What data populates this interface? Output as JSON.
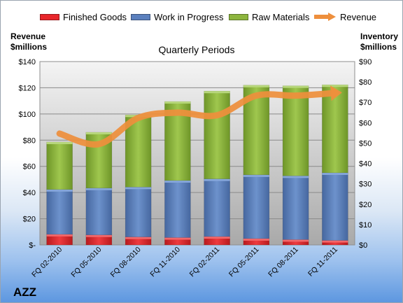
{
  "company": "AZZ",
  "chart_data": {
    "type": "bar",
    "stacked": true,
    "title": "Quarterly Periods",
    "left_axis_label": [
      "Revenue",
      "$millions"
    ],
    "right_axis_label": [
      "Inventory",
      "$millions"
    ],
    "categories": [
      "FQ 02-2010",
      "FQ 05-2010",
      "FQ 08-2010",
      "FQ 11-2010",
      "FQ 02-2011",
      "FQ 05-2011",
      "FQ 08-2011",
      "FQ 11-2011"
    ],
    "left_ylim": [
      0,
      140
    ],
    "left_ticks": [
      "$-",
      "$20",
      "$40",
      "$60",
      "$80",
      "$100",
      "$120",
      "$140"
    ],
    "right_ylim": [
      0,
      90
    ],
    "right_ticks": [
      "$0",
      "$10",
      "$20",
      "$30",
      "$40",
      "$50",
      "$60",
      "$70",
      "$80",
      "$90"
    ],
    "grid": true,
    "legend_position": "top",
    "series": [
      {
        "name": "Finished Goods",
        "axis": "right",
        "kind": "bar",
        "color": "#e8262b",
        "values": [
          5.2,
          4.9,
          3.9,
          3.6,
          4.1,
          3.1,
          2.6,
          2.2
        ]
      },
      {
        "name": "Work in Progress",
        "axis": "right",
        "kind": "bar",
        "color": "#5b80be",
        "values": [
          22.0,
          23.0,
          24.5,
          28.0,
          28.3,
          31.3,
          31.3,
          33.2
        ]
      },
      {
        "name": "Raw Materials",
        "axis": "right",
        "kind": "bar",
        "color": "#8db53e",
        "values": [
          23.3,
          27.4,
          35.4,
          38.8,
          43.1,
          44.0,
          44.2,
          43.2
        ]
      },
      {
        "name": "Revenue",
        "axis": "left",
        "kind": "line",
        "color": "#ee8f3c",
        "values": [
          85,
          77,
          97,
          101,
          99,
          114,
          114,
          116
        ]
      }
    ]
  }
}
